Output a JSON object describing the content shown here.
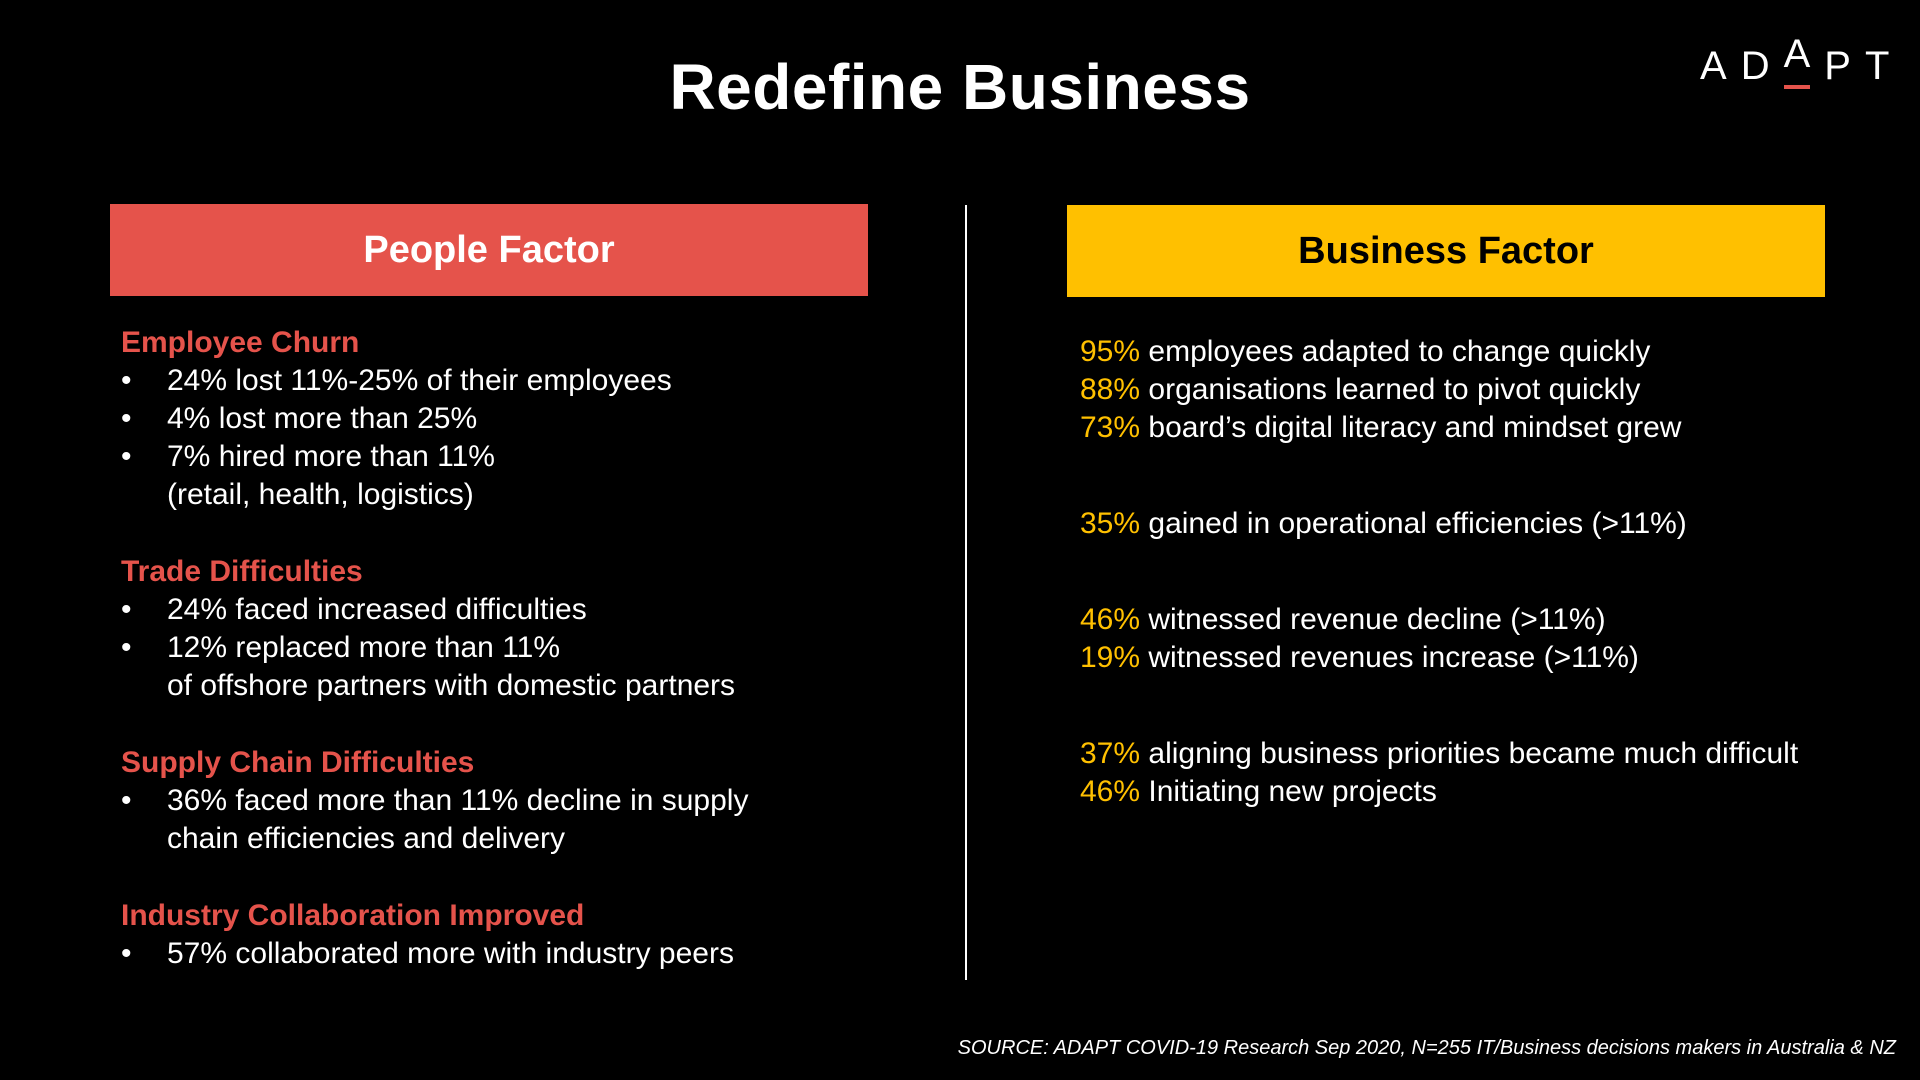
{
  "title": "Redefine Business",
  "logo": {
    "text": "ADAPT",
    "accent_color": "#e5534b"
  },
  "colors": {
    "people": "#e5534b",
    "business": "#ffc000",
    "background": "#000000"
  },
  "people_factor": {
    "header": "People Factor",
    "sections": [
      {
        "title": "Employee Churn",
        "bullets": [
          [
            "24% lost 11%-25% of their employees"
          ],
          [
            "4% lost more than 25%"
          ],
          [
            "7% hired more than 11%",
            "(retail, health, logistics)"
          ]
        ]
      },
      {
        "title": "Trade Difficulties",
        "bullets": [
          [
            "24% faced increased difficulties"
          ],
          [
            "12% replaced more than 11%",
            "of offshore partners with domestic partners"
          ]
        ]
      },
      {
        "title": "Supply Chain Difficulties",
        "bullets": [
          [
            "36% faced more than 11% decline in supply",
            "chain efficiencies and delivery"
          ]
        ]
      },
      {
        "title": "Industry Collaboration Improved",
        "bullets": [
          [
            "57% collaborated more with industry peers"
          ]
        ]
      }
    ]
  },
  "business_factor": {
    "header": "Business Factor",
    "groups": [
      [
        {
          "pct": "95%",
          "text": "employees adapted to change quickly"
        },
        {
          "pct": "88%",
          "text": "organisations learned to pivot quickly"
        },
        {
          "pct": "73%",
          "text": "board’s digital literacy and mindset grew"
        }
      ],
      [
        {
          "pct": "35%",
          "text": "gained in operational efficiencies (>11%)"
        }
      ],
      [
        {
          "pct": "46%",
          "text": "witnessed revenue decline (>11%)"
        },
        {
          "pct": "19%",
          "text": "witnessed revenues increase (>11%)"
        }
      ],
      [
        {
          "pct": "37%",
          "text": "aligning business priorities became much difficult"
        },
        {
          "pct": "46%",
          "text": "Initiating new projects"
        }
      ]
    ]
  },
  "source": "SOURCE: ADAPT COVID-19 Research Sep 2020, N=255 IT/Business decisions makers in Australia & NZ"
}
